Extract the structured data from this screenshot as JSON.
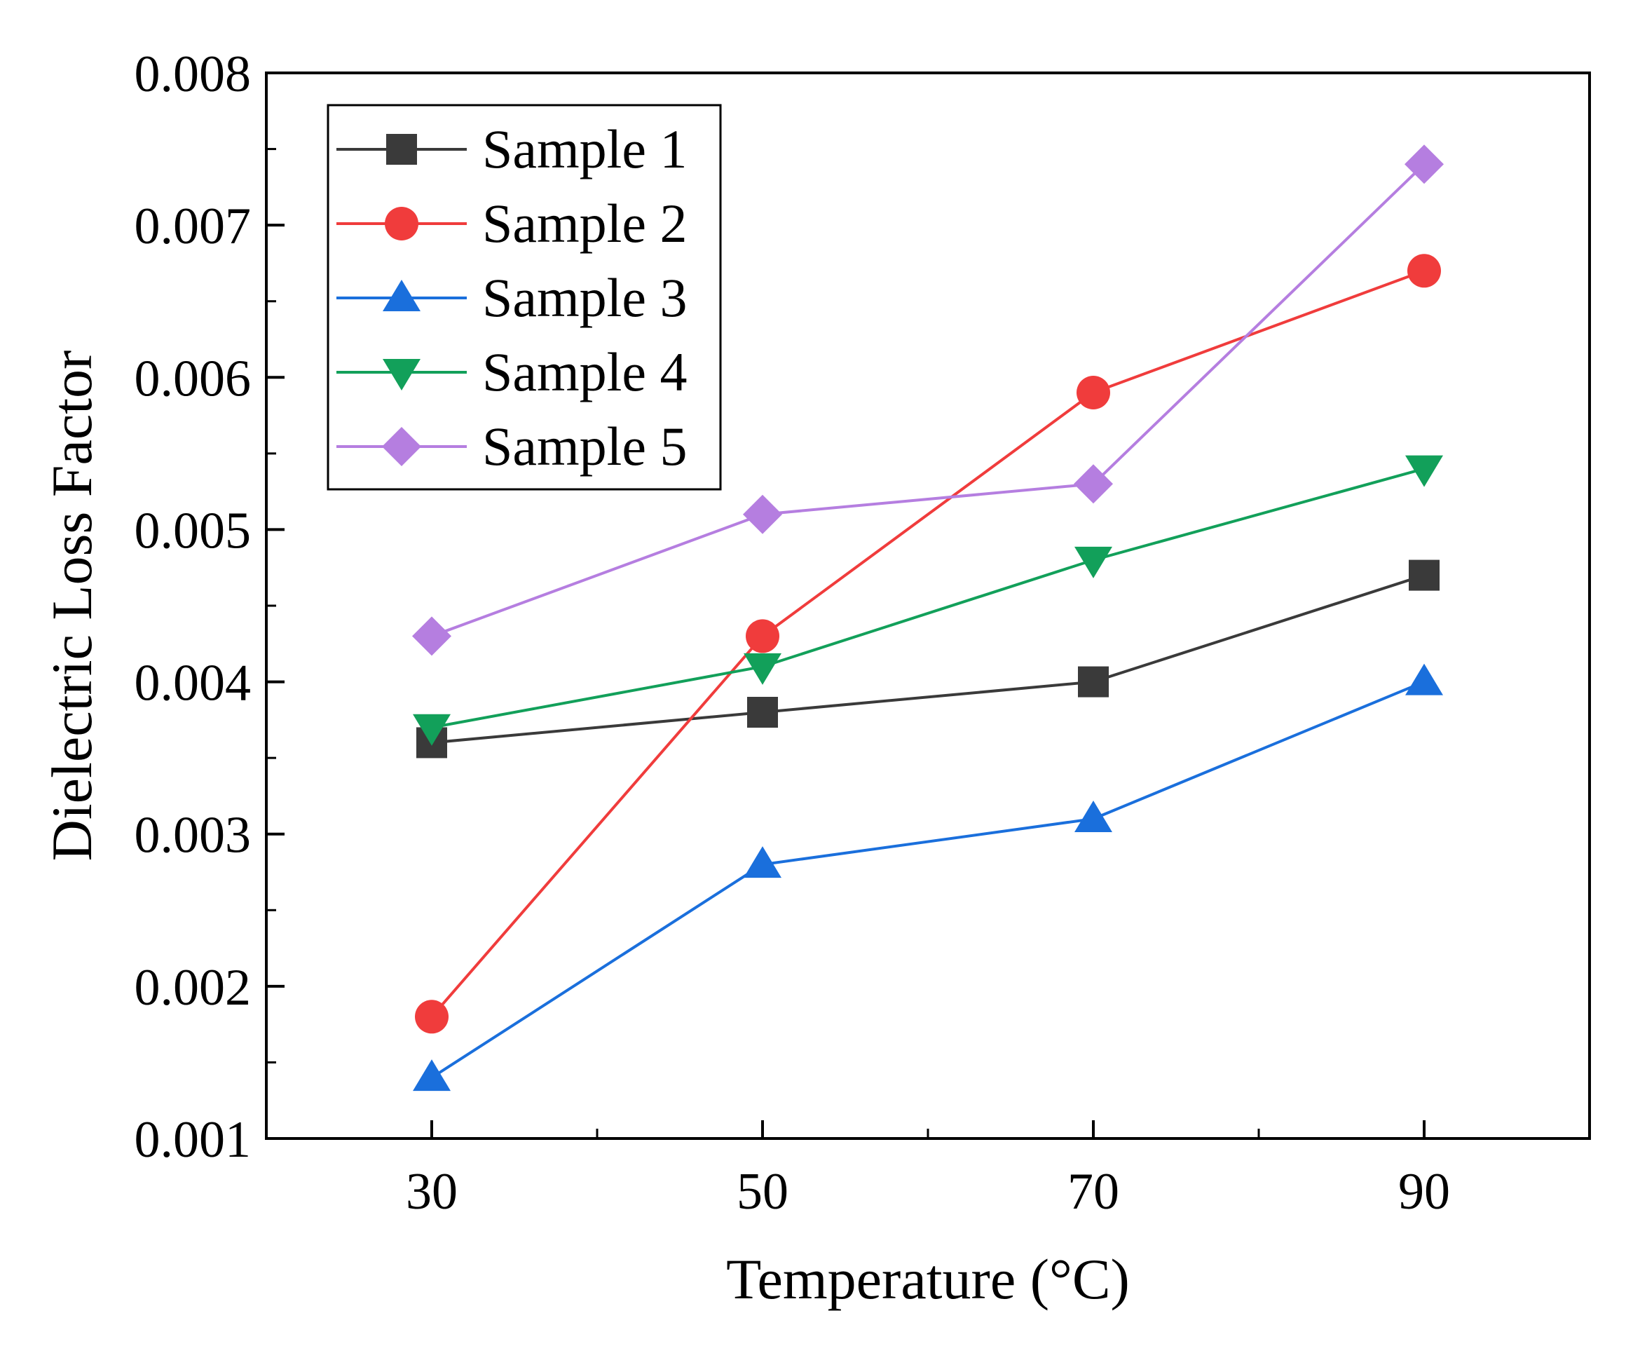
{
  "chart_data": {
    "type": "line",
    "title": "",
    "xlabel": "Temperature (°C)",
    "ylabel": "Dielectric Loss Factor",
    "x": [
      30,
      50,
      70,
      90
    ],
    "xlim": [
      20,
      100
    ],
    "ylim": [
      0.001,
      0.008
    ],
    "x_ticks": [
      30,
      50,
      70,
      90
    ],
    "x_tick_labels": [
      "30",
      "50",
      "70",
      "90"
    ],
    "y_ticks": [
      0.001,
      0.002,
      0.003,
      0.004,
      0.005,
      0.006,
      0.007,
      0.008
    ],
    "y_tick_labels": [
      "0.001",
      "0.002",
      "0.003",
      "0.004",
      "0.005",
      "0.006",
      "0.007",
      "0.008"
    ],
    "grid": false,
    "legend_position": "top-left",
    "series": [
      {
        "name": "Sample 1",
        "color": "#3a3a3a",
        "marker": "square",
        "values": [
          0.0036,
          0.0038,
          0.004,
          0.0047
        ]
      },
      {
        "name": "Sample 2",
        "color": "#f03c3c",
        "marker": "circle",
        "values": [
          0.0018,
          0.0043,
          0.0059,
          0.0067
        ]
      },
      {
        "name": "Sample 3",
        "color": "#1a6fdc",
        "marker": "triangle-up",
        "values": [
          0.0014,
          0.0028,
          0.0031,
          0.004
        ]
      },
      {
        "name": "Sample 4",
        "color": "#12a05a",
        "marker": "triangle-down",
        "values": [
          0.0037,
          0.0041,
          0.0048,
          0.0054
        ]
      },
      {
        "name": "Sample 5",
        "color": "#b57ee0",
        "marker": "diamond",
        "values": [
          0.0043,
          0.0051,
          0.0053,
          0.0074
        ]
      }
    ]
  }
}
